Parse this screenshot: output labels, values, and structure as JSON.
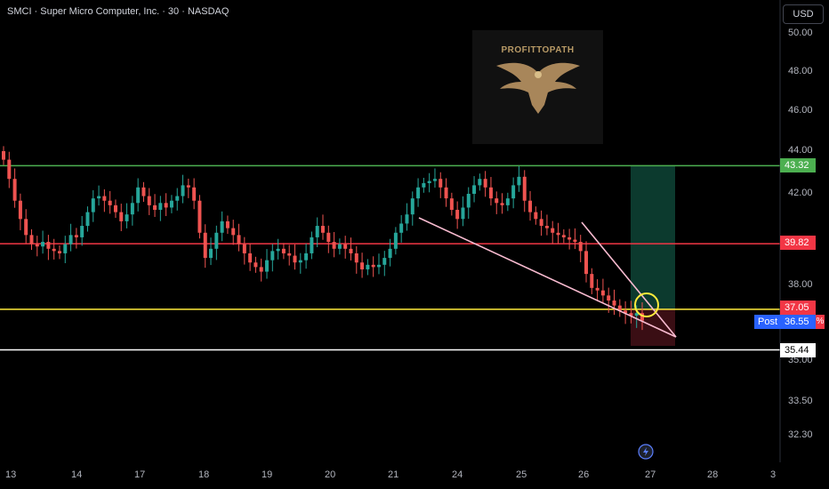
{
  "header": {
    "title": "SMCI · Super Micro Computer, Inc. · 30 · NASDAQ",
    "currency_button": "USD"
  },
  "watermark": {
    "text": "PROFITTOPATH"
  },
  "price_labels": {
    "green_line": "43.32",
    "red_line": "39.82",
    "yellow_line": "37.05",
    "current": "36.55",
    "current_suffix": "%",
    "white_line": "35.44",
    "post_tag": "Post"
  },
  "colors": {
    "up": "#26a69a",
    "down": "#ef5350",
    "green_line": "#4caf50",
    "red_line": "#f23645",
    "yellow_line": "#ffeb3b",
    "white_line": "#ffffff",
    "trendline": "#f8bbd0",
    "target_zone": "#0c3a2e",
    "stop_zone": "#3a0e14"
  },
  "chart_data": {
    "type": "candlestick",
    "symbol": "SMCI",
    "interval": "30",
    "yticks": [
      "50.00",
      "48.00",
      "46.00",
      "44.00",
      "42.00",
      "38.00",
      "35.00",
      "33.50",
      "32.30"
    ],
    "xticks": [
      "13",
      "14",
      "17",
      "18",
      "19",
      "20",
      "21",
      "24",
      "25",
      "26",
      "27",
      "28",
      "3"
    ],
    "horizontal_levels": [
      {
        "name": "resistance",
        "value": 43.32,
        "color": "green"
      },
      {
        "name": "level",
        "value": 39.82,
        "color": "red"
      },
      {
        "name": "entry",
        "value": 37.05,
        "color": "yellow"
      },
      {
        "name": "support",
        "value": 35.44,
        "color": "white"
      }
    ],
    "current_price": 36.55,
    "closes": [
      43.6,
      42.7,
      41.7,
      40.9,
      40.2,
      39.8,
      39.7,
      39.9,
      39.6,
      39.5,
      39.4,
      39.8,
      40.2,
      40.1,
      40.6,
      41.2,
      41.8,
      41.9,
      41.7,
      41.5,
      41.2,
      40.8,
      41.1,
      41.6,
      42.3,
      41.9,
      41.5,
      41.3,
      41.6,
      41.4,
      41.7,
      41.9,
      42.4,
      42.3,
      41.7,
      40.3,
      39.2,
      39.6,
      40.3,
      40.8,
      40.5,
      40.2,
      39.8,
      39.4,
      39.0,
      38.8,
      38.6,
      39.1,
      39.5,
      39.6,
      39.4,
      39.3,
      39.0,
      39.1,
      39.4,
      40.1,
      40.6,
      40.3,
      39.9,
      39.6,
      39.8,
      39.6,
      39.4,
      39.0,
      38.7,
      38.9,
      38.8,
      38.9,
      39.2,
      39.6,
      40.3,
      40.7,
      41.1,
      41.8,
      42.3,
      42.5,
      42.6,
      42.7,
      42.3,
      41.8,
      41.3,
      40.9,
      41.4,
      42.0,
      42.4,
      42.7,
      42.3,
      41.8,
      41.6,
      41.5,
      41.8,
      42.4,
      42.8,
      41.7,
      41.2,
      40.9,
      40.6,
      40.5,
      40.3,
      40.2,
      40.1,
      40.0,
      39.9,
      39.5,
      38.5,
      37.9,
      37.8,
      37.6,
      37.4,
      37.2,
      37.0,
      36.9,
      36.8,
      36.9,
      36.6
    ]
  }
}
